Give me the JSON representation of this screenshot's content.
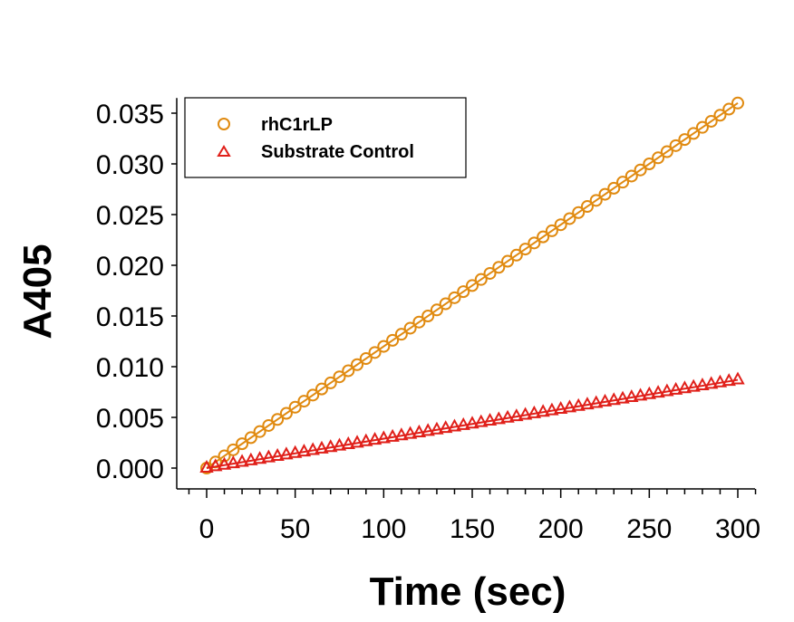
{
  "chart_data": {
    "type": "scatter",
    "title": "",
    "xlabel": "Time (sec)",
    "ylabel": "A405",
    "xlim": [
      -10,
      310
    ],
    "ylim": [
      -0.0015,
      0.0365
    ],
    "xticks": [
      "0",
      "50",
      "100",
      "150",
      "200",
      "250",
      "300"
    ],
    "yticks": [
      "0.000",
      "0.005",
      "0.010",
      "0.015",
      "0.020",
      "0.025",
      "0.030",
      "0.035"
    ],
    "grid": false,
    "legend_position": "top-left",
    "x_step": 5,
    "x_start": 0,
    "x_end": 300,
    "series": [
      {
        "name": "rhC1rLP",
        "marker": "circle",
        "color": "#E08A10",
        "slope_per_sec": 0.00012,
        "intercept": 0.0,
        "fit_line": true
      },
      {
        "name": "Substrate Control",
        "marker": "triangle",
        "color": "#E0201A",
        "slope_per_sec": 2.9e-05,
        "intercept": 0.0,
        "fit_line": true
      }
    ]
  }
}
